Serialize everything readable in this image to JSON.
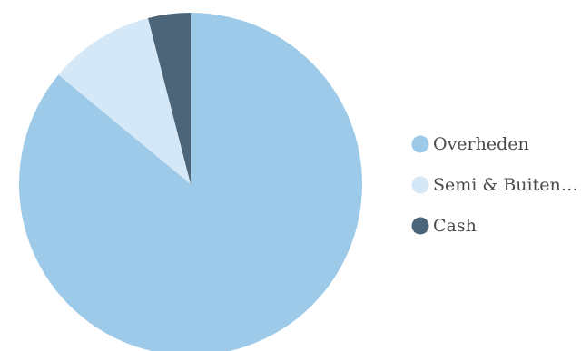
{
  "chart_data": {
    "type": "pie",
    "title": "",
    "slices": [
      {
        "label": "Overheden",
        "value": 86,
        "color": "#9dcae8"
      },
      {
        "label": "Semi & Buiten…",
        "value": 10,
        "color": "#d5e8f7"
      },
      {
        "label": "Cash",
        "value": 4,
        "color": "#4c6578"
      }
    ],
    "legend_position": "right"
  }
}
